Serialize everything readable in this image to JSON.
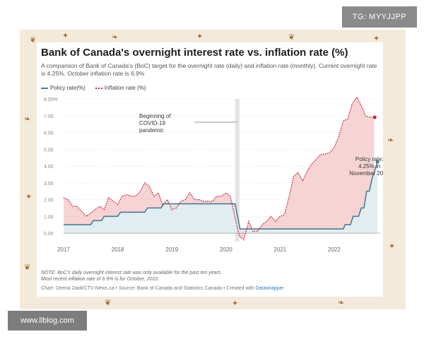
{
  "tag": "TG: MYYJJPP",
  "watermark": "www.llblog.com",
  "source": {
    "prefix": "Chart: Deena Zaidi/CTV News.ca • Source: Bank of Canada and Statistics Canada • Created with ",
    "tool": "Datawrapper"
  },
  "notes": {
    "line1": "NOTE: BoC's daily overnight interest rate was only available for the past ten years.",
    "line2": "Most recent inflation rate of 6.9% is for October, 2022."
  },
  "chart_data": {
    "type": "line",
    "title": "Bank of Canada's overnight interest rate vs. inflation rate (%)",
    "subtitle": "A comparison of Bank of Canada's (BoC) target for the overnight rate (daily) and inflation rate (monthly). Current overnight rate is 4.25%. October inflation rate is 6.9%",
    "xlim": [
      2017.0,
      2022.85
    ],
    "ylim": [
      -0.5,
      8.0
    ],
    "yticks": [
      0,
      1,
      2,
      3,
      4,
      5,
      6,
      7,
      8
    ],
    "ytick_labels": [
      "0.00",
      "1.00",
      "2.00",
      "3.00",
      "4.00",
      "5.00",
      "6.00",
      "7.00",
      "8.00%"
    ],
    "xticks": [
      2017,
      2018,
      2019,
      2020,
      2021,
      2022
    ],
    "xtick_labels": [
      "2017",
      "2018",
      "2019",
      "2020",
      "2021",
      "2022"
    ],
    "grid": true,
    "legend": "top-left",
    "highlight_band": [
      2020.17,
      2020.25
    ],
    "series": [
      {
        "name": "Policy rate(%)",
        "color": "#4a7c93",
        "style": "solid",
        "x": [
          2017.0,
          2017.5,
          2017.55,
          2017.7,
          2017.75,
          2018.0,
          2018.05,
          2018.5,
          2018.55,
          2018.8,
          2018.85,
          2020.17,
          2020.2,
          2020.23,
          2020.26,
          2022.17,
          2022.2,
          2022.3,
          2022.35,
          2022.45,
          2022.5,
          2022.55,
          2022.6,
          2022.65,
          2022.7,
          2022.75,
          2022.8
        ],
        "values": [
          0.5,
          0.5,
          0.75,
          0.75,
          1.0,
          1.0,
          1.25,
          1.25,
          1.5,
          1.5,
          1.75,
          1.75,
          1.25,
          0.75,
          0.25,
          0.25,
          0.5,
          0.5,
          1.0,
          1.0,
          1.5,
          1.5,
          2.5,
          2.5,
          3.25,
          3.75,
          4.25
        ]
      },
      {
        "name": "Inflation rate (%)",
        "color": "#c2233a",
        "style": "dotted",
        "x": [
          2017.0,
          2017.08,
          2017.17,
          2017.25,
          2017.33,
          2017.42,
          2017.5,
          2017.58,
          2017.67,
          2017.75,
          2017.83,
          2017.92,
          2018.0,
          2018.08,
          2018.17,
          2018.25,
          2018.33,
          2018.42,
          2018.5,
          2018.58,
          2018.67,
          2018.75,
          2018.83,
          2018.92,
          2019.0,
          2019.08,
          2019.17,
          2019.25,
          2019.33,
          2019.42,
          2019.5,
          2019.58,
          2019.67,
          2019.75,
          2019.83,
          2019.92,
          2020.0,
          2020.08,
          2020.17,
          2020.25,
          2020.33,
          2020.42,
          2020.5,
          2020.58,
          2020.67,
          2020.75,
          2020.83,
          2020.92,
          2021.0,
          2021.08,
          2021.17,
          2021.25,
          2021.33,
          2021.42,
          2021.5,
          2021.58,
          2021.67,
          2021.75,
          2021.83,
          2021.92,
          2022.0,
          2022.08,
          2022.17,
          2022.25,
          2022.33,
          2022.42,
          2022.5,
          2022.58,
          2022.67,
          2022.75
        ],
        "values": [
          2.1,
          2.0,
          1.6,
          1.6,
          1.3,
          1.0,
          1.2,
          1.4,
          1.6,
          1.4,
          2.1,
          1.9,
          1.7,
          2.2,
          2.3,
          2.2,
          2.2,
          2.5,
          3.0,
          2.8,
          2.2,
          2.4,
          1.7,
          2.0,
          1.4,
          1.5,
          1.9,
          2.0,
          2.4,
          2.0,
          2.0,
          1.9,
          1.9,
          1.9,
          2.2,
          2.2,
          2.4,
          2.2,
          0.9,
          -0.2,
          -0.4,
          0.7,
          0.1,
          0.1,
          0.5,
          0.7,
          1.0,
          0.7,
          1.0,
          1.1,
          2.2,
          3.4,
          3.6,
          3.1,
          3.7,
          4.1,
          4.4,
          4.7,
          4.7,
          4.8,
          5.1,
          5.7,
          6.7,
          6.8,
          7.7,
          8.1,
          7.6,
          7.0,
          6.9,
          6.9
        ]
      }
    ],
    "annotations": [
      {
        "text_lines": [
          "Beginning of",
          "COVID-19",
          "pandemic"
        ],
        "x": 2020.2
      },
      {
        "text_lines": [
          "Policy rate:",
          "4.25% in",
          "November 2022"
        ],
        "x": 2022.65
      }
    ]
  }
}
